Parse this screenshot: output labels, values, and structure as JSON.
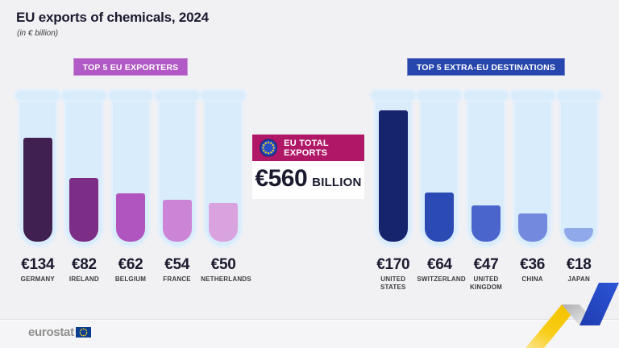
{
  "header": {
    "title": "EU exports of chemicals, 2024",
    "subtitle": "(in € billion)"
  },
  "groups": [
    {
      "badge": "TOP 5 EU EXPORTERS",
      "badge_color": "#b159c4",
      "items": [
        {
          "value": 134,
          "value_label": "€134",
          "country": "GERMANY",
          "fill": "#3f2050"
        },
        {
          "value": 82,
          "value_label": "€82",
          "country": "IRELAND",
          "fill": "#7c2d85"
        },
        {
          "value": 62,
          "value_label": "€62",
          "country": "BELGIUM",
          "fill": "#b055c0"
        },
        {
          "value": 54,
          "value_label": "€54",
          "country": "FRANCE",
          "fill": "#cc85d6"
        },
        {
          "value": 50,
          "value_label": "€50",
          "country": "NETHERLANDS",
          "fill": "#d9a3e0"
        }
      ]
    },
    {
      "badge": "TOP 5 EXTRA-EU DESTINATIONS",
      "badge_color": "#2746ae",
      "items": [
        {
          "value": 170,
          "value_label": "€170",
          "country": "UNITED STATES",
          "fill": "#16246e"
        },
        {
          "value": 64,
          "value_label": "€64",
          "country": "SWITZERLAND",
          "fill": "#2c4ab4"
        },
        {
          "value": 47,
          "value_label": "€47",
          "country": "UNITED KINGDOM",
          "fill": "#4a66cc"
        },
        {
          "value": 36,
          "value_label": "€36",
          "country": "CHINA",
          "fill": "#7289de"
        },
        {
          "value": 18,
          "value_label": "€18",
          "country": "JAPAN",
          "fill": "#8fa9ea"
        }
      ]
    }
  ],
  "total": {
    "badge": "EU TOTAL EXPORTS",
    "badge_color": "#b01767",
    "value": "€560",
    "unit": "BILLION"
  },
  "footer": {
    "logo": "eurostat"
  },
  "colors": {
    "background": "#f1f0f2",
    "tube_glass": "#d9ecfb",
    "title_text": "#1b1b30",
    "eu_flag_blue": "#2850c8",
    "eu_star_yellow": "#ffd617",
    "deco_yellow": "#f5c400",
    "deco_blue": "#2748c8"
  },
  "chart_data": {
    "type": "bar",
    "title": "EU exports of chemicals, 2024",
    "subtitle": "(in € billion)",
    "unit": "€ billion",
    "total": {
      "label": "EU TOTAL EXPORTS",
      "value": 560,
      "unit": "BILLION"
    },
    "series": [
      {
        "name": "TOP 5 EU EXPORTERS",
        "categories": [
          "Germany",
          "Ireland",
          "Belgium",
          "France",
          "Netherlands"
        ],
        "values": [
          134,
          82,
          62,
          54,
          50
        ]
      },
      {
        "name": "TOP 5 EXTRA-EU DESTINATIONS",
        "categories": [
          "United States",
          "Switzerland",
          "United Kingdom",
          "China",
          "Japan"
        ],
        "values": [
          170,
          64,
          47,
          36,
          18
        ]
      }
    ],
    "legend_position": "none",
    "grid": false
  }
}
